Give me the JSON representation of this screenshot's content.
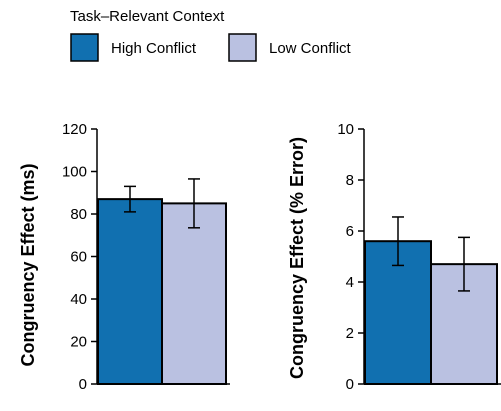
{
  "legend": {
    "title": "Task–Relevant Context",
    "items": [
      {
        "label": "High Conflict",
        "color": "#1170b0"
      },
      {
        "label": "Low Conflict",
        "color": "#bac1e1"
      }
    ]
  },
  "chart_data": [
    {
      "type": "bar",
      "title": "",
      "xlabel": "",
      "ylabel": "Congruency Effect (ms)",
      "ylim": [
        0,
        120
      ],
      "yticks": [
        "0",
        "20",
        "40",
        "60",
        "80",
        "100",
        "120"
      ],
      "categories": [
        ""
      ],
      "series": [
        {
          "name": "High Conflict",
          "values": [
            87
          ],
          "error": [
            6
          ]
        },
        {
          "name": "Low Conflict",
          "values": [
            85
          ],
          "error": [
            11.5
          ]
        }
      ],
      "legend": "top-left"
    },
    {
      "type": "bar",
      "title": "",
      "xlabel": "",
      "ylabel": "Congruency Effect (% Error)",
      "ylim": [
        0,
        10
      ],
      "yticks": [
        "0",
        "2",
        "4",
        "6",
        "8",
        "10"
      ],
      "categories": [
        ""
      ],
      "series": [
        {
          "name": "High Conflict",
          "values": [
            5.6
          ],
          "error": [
            0.95
          ]
        },
        {
          "name": "Low Conflict",
          "values": [
            4.7
          ],
          "error": [
            1.05
          ]
        }
      ],
      "legend": "top-left"
    }
  ]
}
